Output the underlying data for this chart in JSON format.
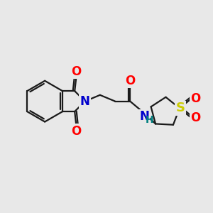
{
  "bg_color": "#e8e8e8",
  "bond_color": "#1a1a1a",
  "bond_width": 1.6,
  "atom_colors": {
    "O": "#ff0000",
    "N": "#0000cc",
    "S": "#cccc00",
    "H": "#008080"
  },
  "font_size_atom": 11,
  "figsize": [
    3.0,
    3.0
  ],
  "dpi": 100
}
